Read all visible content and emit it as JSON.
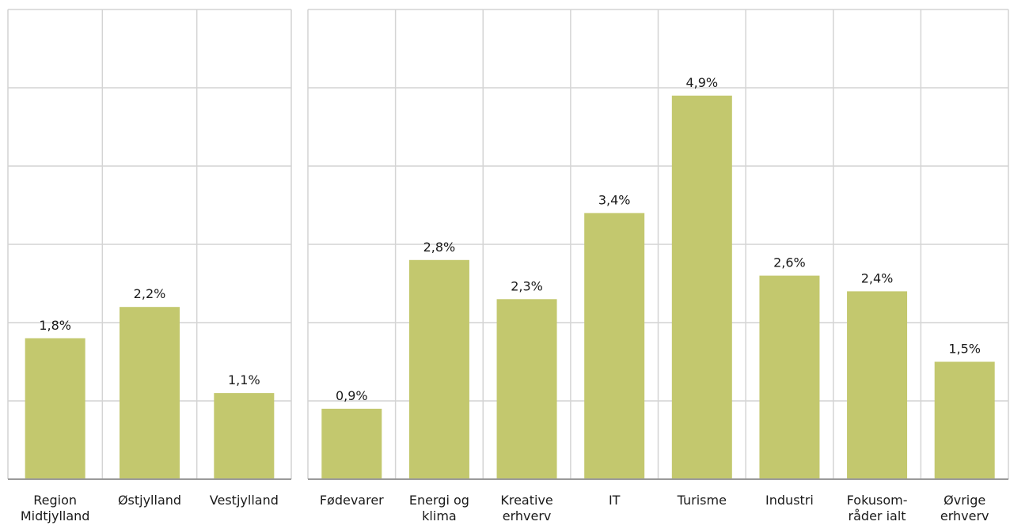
{
  "chart_data": [
    {
      "type": "bar",
      "categories": [
        "Region Midtjylland",
        "Østjylland",
        "Vestjylland"
      ],
      "category_lines": [
        [
          "Region",
          "Midtjylland"
        ],
        [
          "Østjylland"
        ],
        [
          "Vestjylland"
        ]
      ],
      "values": [
        1.8,
        2.2,
        1.1
      ],
      "value_labels": [
        "1,8%",
        "2,2%",
        "1,1%"
      ],
      "ylim": [
        0,
        6
      ],
      "grid": true,
      "bar_color": "#c3c86e"
    },
    {
      "type": "bar",
      "categories": [
        "Fødevarer",
        "Energi og klima",
        "Kreative erhverv",
        "IT",
        "Turisme",
        "Industri",
        "Fokusområder ialt",
        "Øvrige erhverv"
      ],
      "category_lines": [
        [
          "Fødevarer"
        ],
        [
          "Energi og",
          "klima"
        ],
        [
          "Kreative",
          "erhverv"
        ],
        [
          "IT"
        ],
        [
          "Turisme"
        ],
        [
          "Industri"
        ],
        [
          "Fokusom-",
          "råder ialt"
        ],
        [
          "Øvrige",
          "erhverv"
        ]
      ],
      "values": [
        0.9,
        2.8,
        2.3,
        3.4,
        4.9,
        2.6,
        2.4,
        1.5
      ],
      "value_labels": [
        "0,9%",
        "2,8%",
        "2,3%",
        "3,4%",
        "4,9%",
        "2,6%",
        "2,4%",
        "1,5%"
      ],
      "ylim": [
        0,
        6
      ],
      "grid": true,
      "bar_color": "#c3c86e"
    }
  ]
}
